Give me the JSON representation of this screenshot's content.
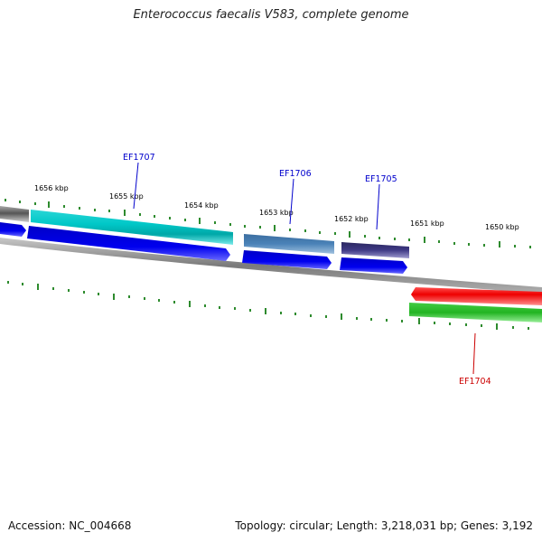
{
  "title": "Enterococcus faecalis V583, complete genome",
  "footer": {
    "accession": "Accession: NC_004668",
    "summary": "Topology: circular; Length: 3,218,031 bp; Genes: 3,192"
  },
  "scale_labels": [
    "1656 kbp",
    "1655 kbp",
    "1654 kbp",
    "1653 kbp",
    "1652 kbp",
    "1651 kbp",
    "1650 kbp"
  ],
  "gene_labels": {
    "ef1707": "EF1707",
    "ef1706": "EF1706",
    "ef1705": "EF1705",
    "ef1704": "EF1704"
  },
  "colors": {
    "forward_label": "#0000cc",
    "reverse_label": "#cc0000",
    "tick": "#2e8b2e",
    "backbone": "#888888"
  }
}
